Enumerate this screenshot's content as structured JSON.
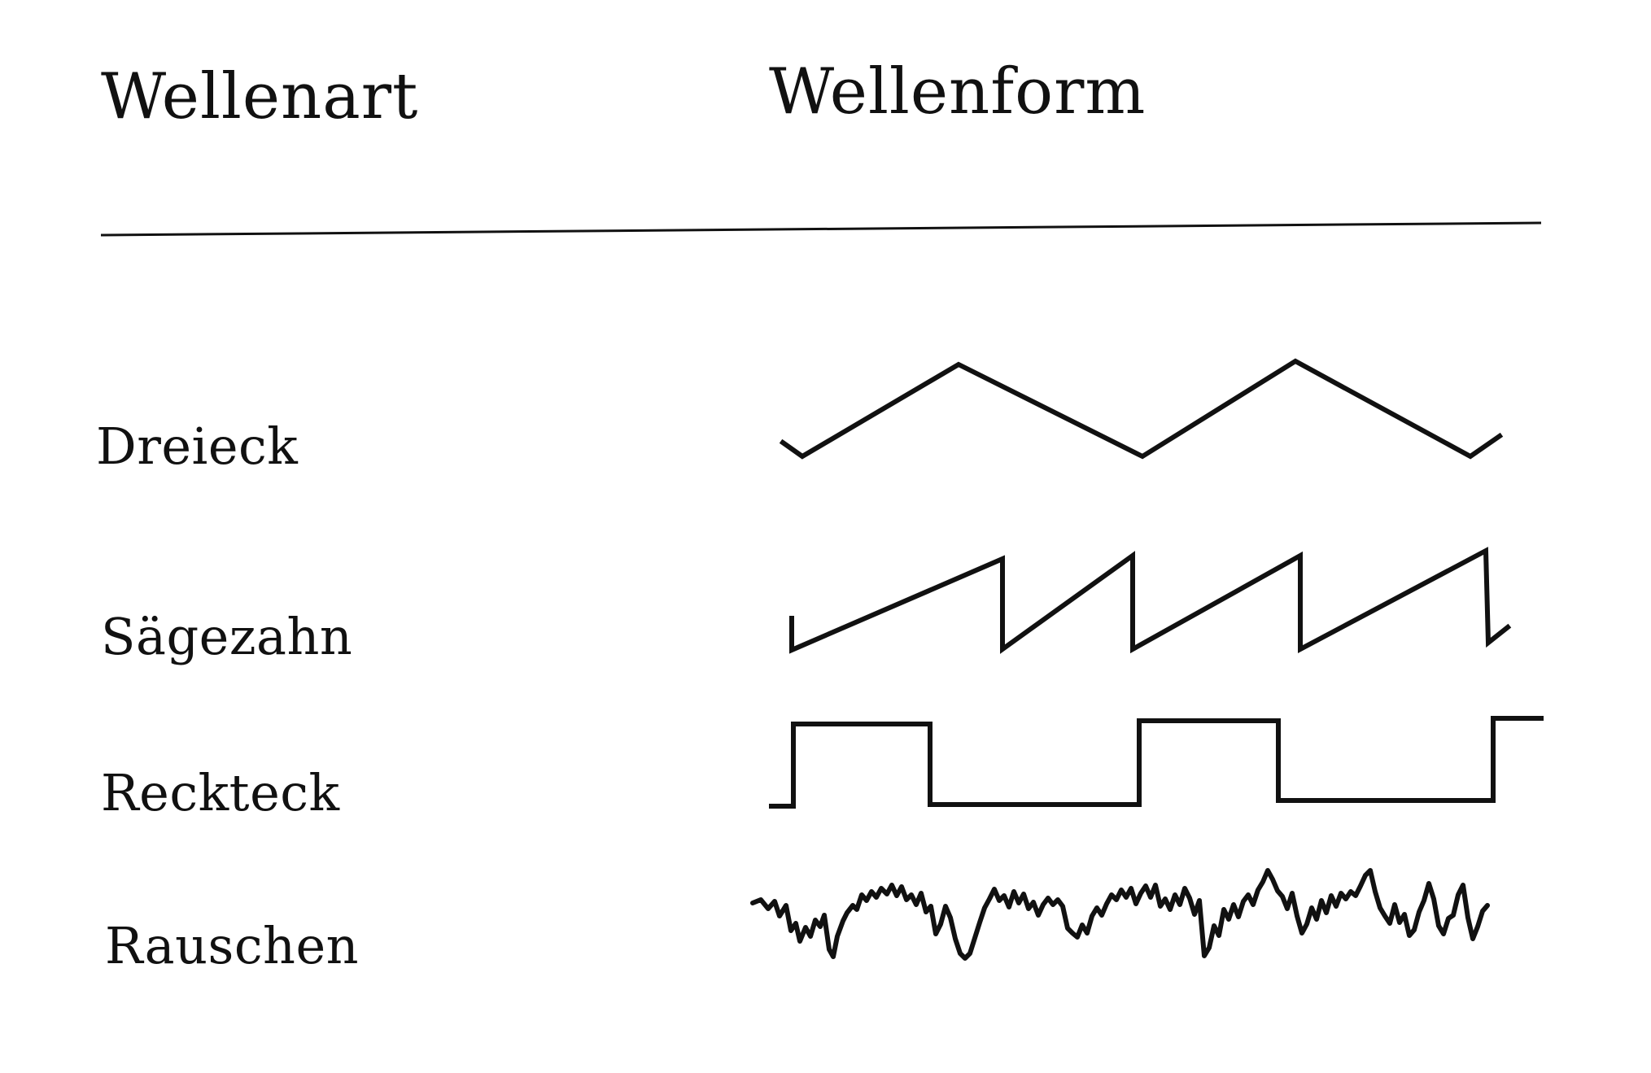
{
  "headers": {
    "wave_type": "Wellenart",
    "waveform": "Wellenform"
  },
  "rows": [
    {
      "label": "Dreieck",
      "wave_kind": "triangle"
    },
    {
      "label": "Sägezahn",
      "wave_kind": "sawtooth"
    },
    {
      "label": "Reckteck",
      "wave_kind": "square"
    },
    {
      "label": "Rauschen",
      "wave_kind": "noise"
    }
  ],
  "colors": {
    "ink": "#111111",
    "background": "#ffffff"
  }
}
